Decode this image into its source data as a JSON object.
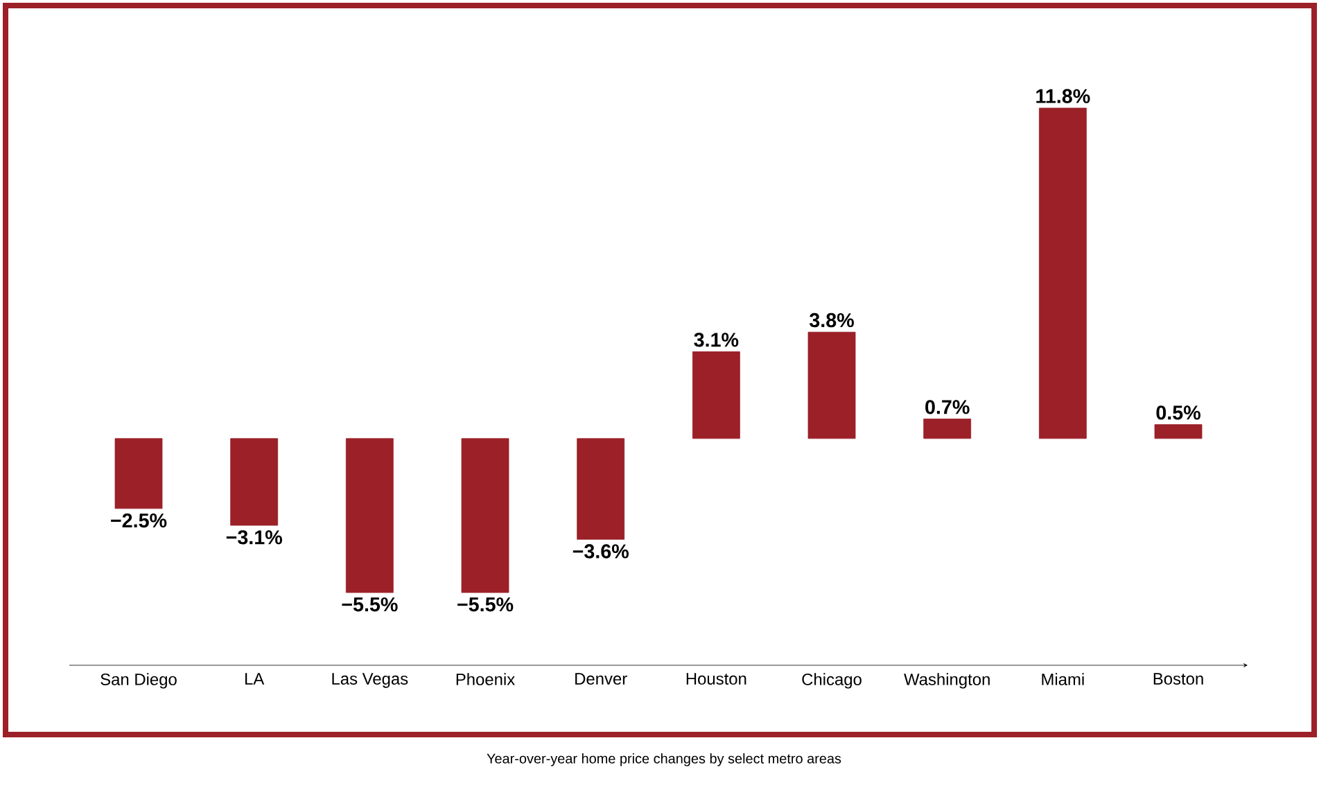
{
  "chart_data": {
    "type": "bar",
    "categories": [
      "San Diego",
      "LA",
      "Las Vegas",
      "Phoenix",
      "Denver",
      "Houston",
      "Chicago",
      "Washington",
      "Miami",
      "Boston"
    ],
    "values": [
      -2.5,
      -3.1,
      -5.5,
      -5.5,
      -3.6,
      3.1,
      3.8,
      0.7,
      11.8,
      0.5
    ],
    "value_labels": [
      "−2.5%",
      "−3.1%",
      "−5.5%",
      "−5.5%",
      "−3.6%",
      "3.1%",
      "3.8%",
      "0.7%",
      "11.8%",
      "0.5%"
    ],
    "color": "#9b2028",
    "annotations": [
      "Year-over-year home price changes by select metro areas"
    ]
  }
}
